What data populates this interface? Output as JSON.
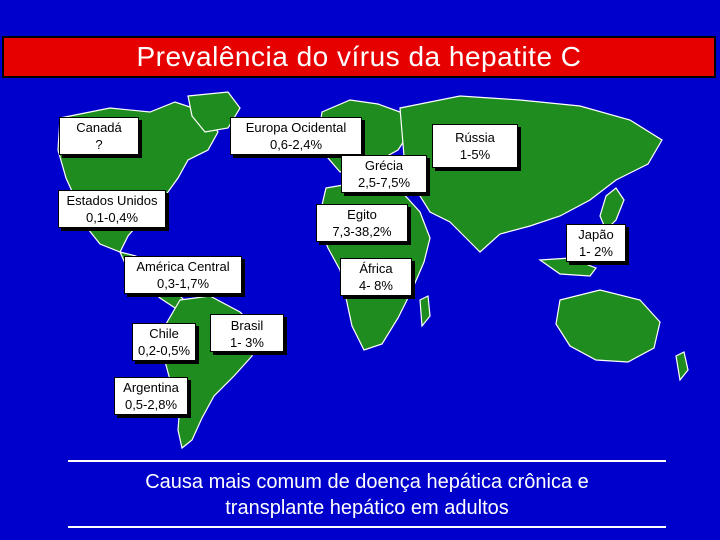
{
  "title": "Prevalência do vírus da hepatite C",
  "regions": [
    {
      "id": "canada",
      "name": "Canadá",
      "value": "?"
    },
    {
      "id": "europa",
      "name": "Europa Ocidental",
      "value": "0,6-2,4%"
    },
    {
      "id": "russia",
      "name": "Rússia",
      "value": "1-5%"
    },
    {
      "id": "grecia",
      "name": "Grécia",
      "value": "2,5-7,5%"
    },
    {
      "id": "eua",
      "name": "Estados Unidos",
      "value": "0,1-0,4%"
    },
    {
      "id": "egito",
      "name": "Egito",
      "value": "7,3-38,2%"
    },
    {
      "id": "japao",
      "name": "Japão",
      "value": "1- 2%"
    },
    {
      "id": "america-central",
      "name": "América Central",
      "value": "0,3-1,7%"
    },
    {
      "id": "africa",
      "name": "África",
      "value": "4- 8%"
    },
    {
      "id": "chile",
      "name": "Chile",
      "value": "0,2-0,5%"
    },
    {
      "id": "brasil",
      "name": "Brasil",
      "value": "1- 3%"
    },
    {
      "id": "argentina",
      "name": "Argentina",
      "value": "0,5-2,8%"
    }
  ],
  "footer": {
    "line1": "Causa mais comum de doença hepática crônica e",
    "line2": "transplante hepático em adultos"
  },
  "colors": {
    "background": "#0000cc",
    "land": "#1e8c1e",
    "title_bg": "#e60000"
  }
}
